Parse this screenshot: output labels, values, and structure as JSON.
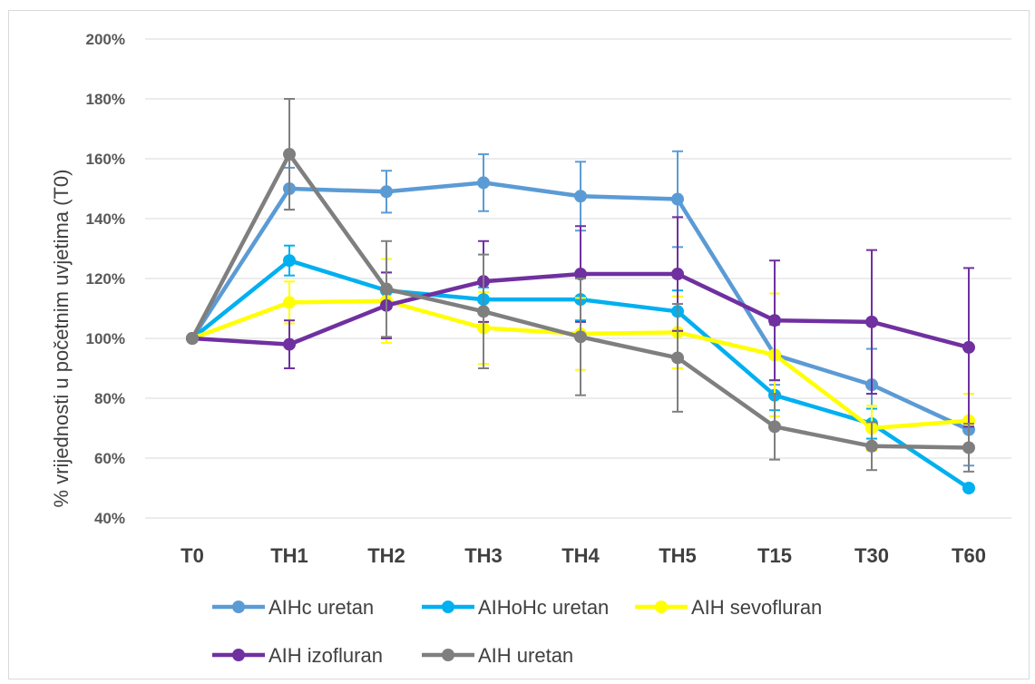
{
  "chart_data": {
    "type": "line",
    "title": "",
    "xlabel": "",
    "ylabel": "% vrijednosti u početnim uvjetima (T0)",
    "categories": [
      "T0",
      "TH1",
      "TH2",
      "TH3",
      "TH4",
      "TH5",
      "T15",
      "T30",
      "T60"
    ],
    "ylim": [
      40,
      200
    ],
    "yticks": [
      40,
      60,
      80,
      100,
      120,
      140,
      160,
      180,
      200
    ],
    "ytick_labels": [
      "40%",
      "60%",
      "80%",
      "100%",
      "120%",
      "140%",
      "160%",
      "180%",
      "200%"
    ],
    "grid": true,
    "legend_position": "bottom",
    "series": [
      {
        "name": "AIHc uretan",
        "color": "#5b9bd5",
        "values": [
          100,
          150,
          149,
          152,
          147.5,
          146.5,
          94.5,
          84.5,
          69.5
        ],
        "errors": [
          0,
          7,
          7,
          9.5,
          11.5,
          16,
          10,
          12,
          12
        ]
      },
      {
        "name": "AIHoHc uretan",
        "color": "#00b0f0",
        "values": [
          100,
          126,
          116,
          113,
          113,
          109,
          81,
          71.5,
          50
        ],
        "errors": [
          0,
          5,
          6,
          4,
          7,
          7,
          5,
          5,
          0
        ]
      },
      {
        "name": "AIH sevofluran",
        "color": "#ffff00",
        "values": [
          100,
          112,
          112.5,
          103.5,
          101.5,
          102,
          94.5,
          70,
          72.5
        ],
        "errors": [
          0,
          7,
          14,
          12,
          12,
          12,
          20.5,
          7.5,
          9
        ]
      },
      {
        "name": "AIH izofluran",
        "color": "#7030a0",
        "values": [
          100,
          98,
          111,
          119,
          121.5,
          121.5,
          106,
          105.5,
          97
        ],
        "errors": [
          0,
          8,
          11,
          13.5,
          16,
          19,
          20,
          24,
          26.5
        ]
      },
      {
        "name": "AIH uretan",
        "color": "#7f7f7f",
        "values": [
          100,
          161.5,
          116.5,
          109,
          100.5,
          93.5,
          70.5,
          64,
          63.5
        ],
        "errors": [
          0,
          18.5,
          16,
          19,
          19.5,
          18,
          11,
          8,
          8
        ]
      }
    ]
  }
}
